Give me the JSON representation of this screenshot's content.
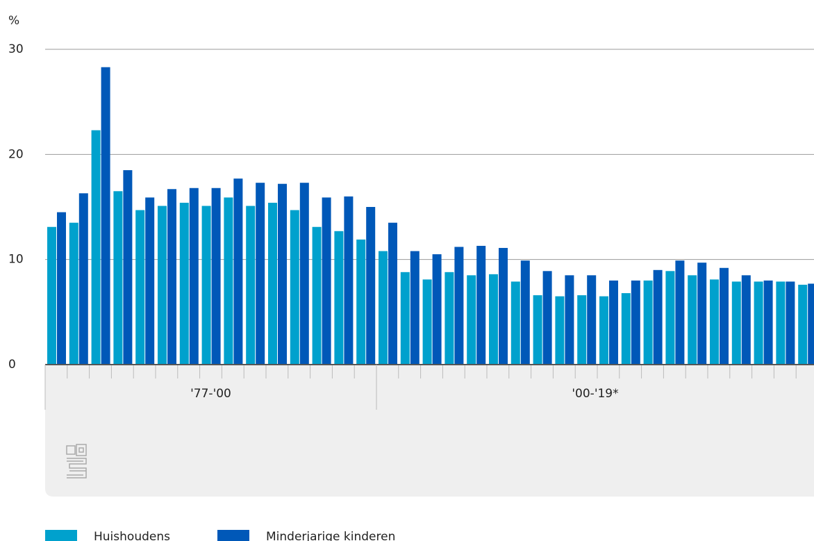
{
  "chart_data": {
    "type": "bar",
    "y_label": "%",
    "categories": [
      null,
      null,
      null,
      null,
      null,
      null,
      null,
      null,
      null,
      null,
      null,
      null,
      null,
      null,
      null,
      null,
      null,
      null,
      null,
      null,
      null,
      null,
      null,
      null,
      null,
      null,
      null,
      null,
      null,
      null,
      null,
      null,
      null,
      null,
      null
    ],
    "groups": [
      "'77-'00",
      "'00-'19*"
    ],
    "series": [
      {
        "name": "Huishoudens",
        "color": "#00a1cd",
        "values": [
          13.1,
          13.5,
          22.3,
          16.5,
          14.7,
          15.1,
          15.4,
          15.1,
          15.9,
          15.1,
          15.4,
          14.7,
          13.1,
          12.7,
          11.9,
          10.8,
          8.8,
          8.1,
          8.8,
          8.5,
          8.6,
          7.9,
          6.6,
          6.5,
          6.6,
          6.5,
          6.8,
          8.0,
          8.9,
          8.5,
          8.1,
          7.9,
          7.9,
          7.9,
          7.6
        ]
      },
      {
        "name": "Minderjarige kinderen",
        "color": "#0058b8",
        "values": [
          14.5,
          16.3,
          28.3,
          18.5,
          15.9,
          16.7,
          16.8,
          16.8,
          17.7,
          17.3,
          17.2,
          17.3,
          15.9,
          16.0,
          15.0,
          13.5,
          10.8,
          10.5,
          11.2,
          11.3,
          11.1,
          9.9,
          8.9,
          8.5,
          8.5,
          8.0,
          8.0,
          9.0,
          9.9,
          9.7,
          9.2,
          8.5,
          8.0,
          7.9,
          7.7
        ]
      }
    ],
    "ylim": [
      0,
      30
    ],
    "yticks": [
      0,
      10,
      20,
      30
    ],
    "grid": true
  }
}
